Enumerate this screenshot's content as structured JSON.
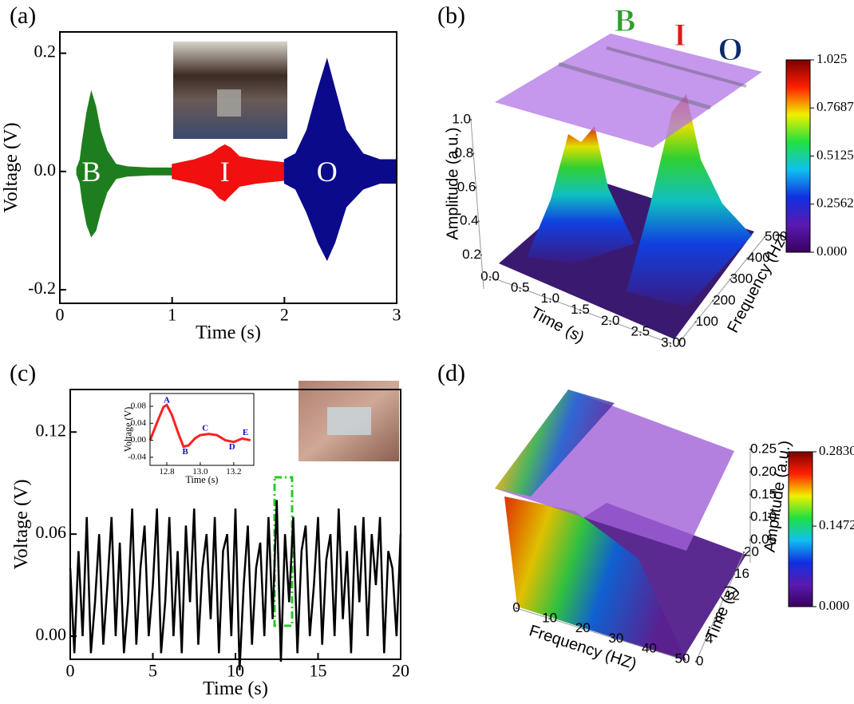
{
  "chart_data": [
    {
      "panel": "(a)",
      "type": "line",
      "xlabel": "Time (s)",
      "ylabel": "Voltage (V)",
      "xlim": [
        0,
        3
      ],
      "ylim": [
        -0.223,
        0.236
      ],
      "xticks": [
        0,
        1,
        2,
        3
      ],
      "yticks": [
        -0.2,
        {
          "value": 0,
          "label": "0.0"
        },
        0.2
      ],
      "series": [
        {
          "name": "B",
          "color": "#1e7e1e",
          "x": [
            0.15,
            0.18,
            0.2,
            0.24,
            0.28,
            0.32,
            0.36,
            0.42,
            0.5,
            0.6,
            0.8,
            1.0
          ],
          "values": [
            0.005,
            0.02,
            0.05,
            0.1,
            0.135,
            0.11,
            0.07,
            0.035,
            0.012,
            0.008,
            0.006,
            0.006
          ],
          "lower": [
            -0.005,
            -0.02,
            -0.05,
            -0.09,
            -0.11,
            -0.1,
            -0.07,
            -0.035,
            -0.012,
            -0.008,
            -0.006,
            -0.006
          ]
        },
        {
          "name": "I",
          "color": "#f01010",
          "x": [
            1.0,
            1.2,
            1.35,
            1.42,
            1.47,
            1.52,
            1.6,
            1.75,
            2.0
          ],
          "values": [
            0.012,
            0.02,
            0.03,
            0.04,
            0.045,
            0.04,
            0.025,
            0.02,
            0.015
          ],
          "lower": [
            -0.012,
            -0.02,
            -0.03,
            -0.045,
            -0.05,
            -0.04,
            -0.025,
            -0.02,
            -0.015
          ]
        },
        {
          "name": "O",
          "color": "#0a0a8a",
          "x": [
            2.0,
            2.1,
            2.2,
            2.3,
            2.38,
            2.45,
            2.55,
            2.7,
            2.85,
            3.0
          ],
          "values": [
            0.02,
            0.03,
            0.07,
            0.14,
            0.19,
            0.14,
            0.07,
            0.03,
            0.02,
            0.02
          ],
          "lower": [
            -0.02,
            -0.03,
            -0.07,
            -0.12,
            -0.15,
            -0.12,
            -0.06,
            -0.03,
            -0.02,
            -0.02
          ]
        }
      ]
    },
    {
      "panel": "(b)",
      "type": "surface3d",
      "xlabel": "Time (s)",
      "ylabel": "Frequency (Hz)",
      "zlabel": "Amplitude (a.u.)",
      "letters": [
        {
          "text": "B",
          "color": "#2e9e2e"
        },
        {
          "text": "I",
          "color": "#e01818"
        },
        {
          "text": "O",
          "color": "#0a2a6a"
        }
      ],
      "xlim": [
        0,
        3
      ],
      "xticks": [
        {
          "value": 0,
          "label": "0.0"
        },
        0.5,
        {
          "value": 1,
          "label": "1.0"
        },
        1.5,
        {
          "value": 2,
          "label": "2.0"
        },
        2.5,
        {
          "value": 3,
          "label": "3.0"
        }
      ],
      "ylim": [
        0,
        500
      ],
      "yticks": [
        0,
        100,
        200,
        300,
        400,
        500
      ],
      "zlim": [
        0,
        1
      ],
      "zticks": [
        0.2,
        0.4,
        0.6,
        0.8,
        {
          "value": 1,
          "label": "1.0"
        }
      ],
      "clim": [
        0,
        1.025
      ],
      "cticks": [
        {
          "value": 0,
          "label": "0.000"
        },
        0.2562,
        0.5125,
        0.7687,
        1.025
      ],
      "colormap": [
        "#3a0060",
        "#5a1ab0",
        "#1030e0",
        "#10c0f0",
        "#20e040",
        "#f0f000",
        "#ff2000",
        "#7a0000"
      ]
    },
    {
      "panel": "(c)",
      "type": "line",
      "xlabel": "Time (s)",
      "ylabel": "Voltage (V)",
      "xlim": [
        0,
        20
      ],
      "ylim": [
        -0.0136,
        0.145
      ],
      "xticks": [
        0,
        5,
        10,
        15,
        20
      ],
      "yticks": [
        {
          "value": 0,
          "label": "0.00"
        },
        0.06,
        0.12
      ],
      "series": [
        {
          "color": "#000000",
          "x": [
            0,
            0.25,
            0.5,
            0.75,
            1,
            1.25,
            1.5,
            1.75,
            2,
            2.25,
            2.5,
            2.75,
            3,
            3.25,
            3.5,
            3.75,
            4,
            4.25,
            4.5,
            4.75,
            5,
            5.25,
            5.5,
            5.75,
            6,
            6.25,
            6.5,
            6.75,
            7,
            7.25,
            7.5,
            7.75,
            8,
            8.25,
            8.5,
            8.75,
            9,
            9.25,
            9.5,
            9.75,
            10,
            10.25,
            10.5,
            10.75,
            11,
            11.25,
            11.5,
            11.75,
            12,
            12.25,
            12.5,
            12.75,
            13,
            13.25,
            13.5,
            13.75,
            14,
            14.25,
            14.5,
            14.75,
            15,
            15.25,
            15.5,
            15.75,
            16,
            16.25,
            16.5,
            16.75,
            17,
            17.25,
            17.5,
            17.75,
            18,
            18.25,
            18.5,
            18.75,
            19,
            19.25,
            19.5,
            19.75,
            20
          ],
          "values": [
            0.04,
            -0.01,
            0.05,
            0.0,
            0.07,
            -0.01,
            0.02,
            0.06,
            -0.005,
            0.03,
            0.07,
            0.0,
            0.055,
            -0.01,
            0.02,
            0.075,
            -0.005,
            0.04,
            0.065,
            0.0,
            0.03,
            0.075,
            -0.01,
            0.02,
            0.07,
            0.0,
            0.05,
            -0.01,
            0.065,
            0.02,
            0.075,
            -0.005,
            0.04,
            0.06,
            0.01,
            0.07,
            -0.01,
            0.05,
            0.06,
            0.0,
            0.075,
            -0.02,
            0.03,
            0.065,
            -0.005,
            0.04,
            0.055,
            0.0,
            0.07,
            0.01,
            0.08,
            -0.015,
            0.06,
            0.02,
            0.07,
            -0.01,
            0.05,
            0.065,
            0.0,
            0.03,
            0.07,
            -0.005,
            0.045,
            0.06,
            0.0,
            0.075,
            0.01,
            0.05,
            -0.01,
            0.065,
            0.02,
            0.07,
            0.0,
            0.06,
            0.03,
            0.07,
            -0.01,
            0.05,
            0.04,
            0.0,
            0.06
          ]
        }
      ],
      "inset": {
        "xlabel": "Time (s)",
        "ylabel": "Voltage (V)",
        "xlim": [
          12.7,
          13.32
        ],
        "ylim": [
          -0.059,
          0.11
        ],
        "xticks": [
          12.8,
          {
            "value": 13,
            "label": "13.0"
          },
          13.2
        ],
        "yticks": [
          -0.04,
          {
            "value": 0,
            "label": "0.00"
          },
          0.04,
          0.08
        ],
        "series": [
          {
            "color": "#ff2020",
            "x": [
              12.7,
              12.74,
              12.78,
              12.8,
              12.83,
              12.87,
              12.9,
              12.93,
              12.97,
              13.0,
              13.05,
              13.1,
              13.15,
              13.2,
              13.25,
              13.3
            ],
            "values": [
              0.0,
              0.04,
              0.078,
              0.083,
              0.06,
              0.015,
              -0.015,
              -0.012,
              0.005,
              0.012,
              0.015,
              0.012,
              0.0,
              -0.004,
              0.004,
              0.0
            ]
          }
        ],
        "annotations": [
          {
            "text": "A",
            "x": 12.8,
            "y": 0.093
          },
          {
            "text": "B",
            "x": 12.91,
            "y": -0.028
          },
          {
            "text": "C",
            "x": 13.03,
            "y": 0.027
          },
          {
            "text": "D",
            "x": 13.19,
            "y": -0.017
          },
          {
            "text": "E",
            "x": 13.27,
            "y": 0.017
          }
        ]
      }
    },
    {
      "panel": "(d)",
      "type": "surface3d",
      "xlabel": "Frequency (HZ)",
      "ylabel": "Time (s)",
      "zlabel": "Amplitude (a.u.)",
      "xlim": [
        0,
        50
      ],
      "xticks": [
        0,
        10,
        20,
        30,
        40,
        50
      ],
      "ylim": [
        0,
        20
      ],
      "yticks": [
        0,
        4,
        8,
        12,
        16,
        20
      ],
      "zlim": [
        0,
        0.25
      ],
      "zticks": [
        0.05,
        {
          "value": 0.1,
          "label": "0.10"
        },
        0.15,
        {
          "value": 0.2,
          "label": "0.20"
        },
        0.25
      ],
      "clim": [
        0,
        0.283
      ],
      "cticks": [
        {
          "value": 0,
          "label": "0.000"
        },
        0.1472,
        {
          "value": 0.283,
          "label": "0.2830"
        }
      ],
      "colormap": [
        "#3a0060",
        "#5a1ab0",
        "#1030e0",
        "#10c0f0",
        "#20e040",
        "#f0f000",
        "#ff2000",
        "#7a0000"
      ]
    }
  ]
}
